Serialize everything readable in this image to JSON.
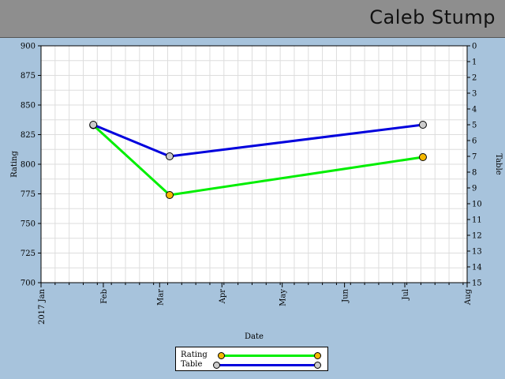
{
  "header": {
    "name": "Caleb Stump"
  },
  "chart_data": {
    "type": "line",
    "xlabel": "Date",
    "ylabel_left": "Rating",
    "ylabel_right": "Table",
    "x_ticks": [
      "2017 Jan",
      "Feb",
      "Mar",
      "Apr",
      "May",
      "Jun",
      "Jul",
      "Aug"
    ],
    "xlim": [
      "2017-01-01",
      "2017-08-01"
    ],
    "ylim_left": [
      700,
      900
    ],
    "y_ticks_left": [
      700,
      725,
      750,
      775,
      800,
      825,
      850,
      875,
      900
    ],
    "ylim_right": [
      15,
      0
    ],
    "y_ticks_right": [
      0,
      1,
      2,
      3,
      4,
      5,
      6,
      7,
      8,
      9,
      10,
      11,
      12,
      13,
      14,
      15
    ],
    "right_axis_inverted": true,
    "grid": true,
    "legend_placement": "bottom-center",
    "series": [
      {
        "name": "Rating",
        "axis": "left",
        "color": "#00ee00",
        "marker_color": "#f5b800",
        "points": [
          {
            "x": "2017-01-27",
            "y": 833
          },
          {
            "x": "2017-03-06",
            "y": 774
          },
          {
            "x": "2017-07-10",
            "y": 806
          }
        ]
      },
      {
        "name": "Table",
        "axis": "right",
        "color": "#0000dd",
        "marker_color": "#cccccc",
        "points": [
          {
            "x": "2017-01-27",
            "y": 5
          },
          {
            "x": "2017-03-06",
            "y": 7
          },
          {
            "x": "2017-07-10",
            "y": 5
          }
        ]
      }
    ]
  }
}
